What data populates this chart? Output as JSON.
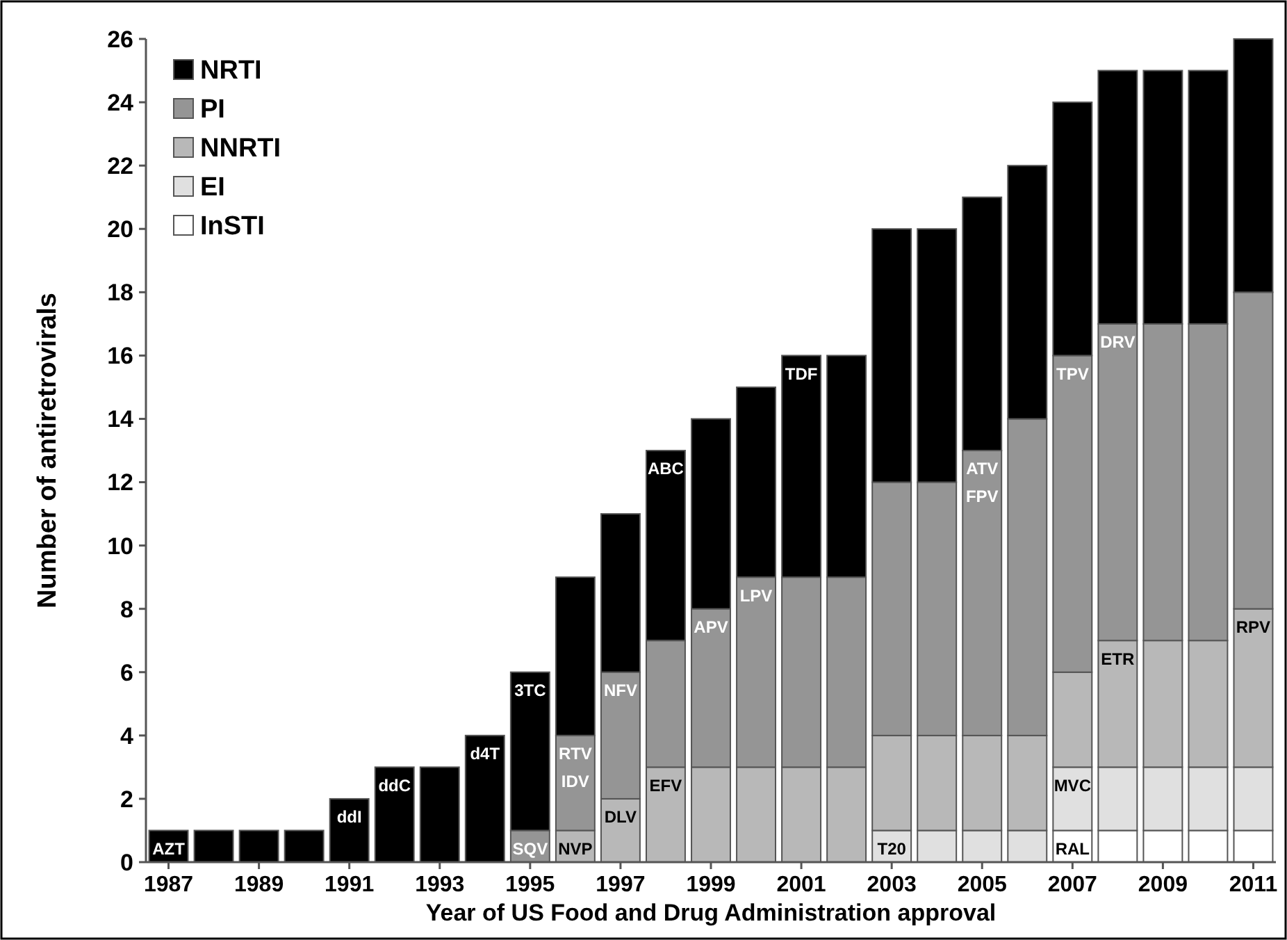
{
  "chart_data": {
    "type": "bar",
    "stacked": true,
    "xlabel": "Year of US Food and Drug Administration approval",
    "ylabel": "Number of antiretrovirals",
    "x": [
      1987,
      1988,
      1989,
      1990,
      1991,
      1992,
      1993,
      1994,
      1995,
      1996,
      1997,
      1998,
      1999,
      2000,
      2001,
      2002,
      2003,
      2004,
      2005,
      2006,
      2007,
      2008,
      2009,
      2010,
      2011
    ],
    "xlim": [
      1986.5,
      2011.5
    ],
    "xticks": [
      1987,
      1989,
      1991,
      1993,
      1995,
      1997,
      1999,
      2001,
      2003,
      2005,
      2007,
      2009,
      2011
    ],
    "ylim": [
      0,
      26
    ],
    "yticks": [
      0,
      2,
      4,
      6,
      8,
      10,
      12,
      14,
      16,
      18,
      20,
      22,
      24,
      26
    ],
    "grid": false,
    "legend": "top left",
    "series": [
      {
        "name": "InSTI",
        "color": "#ffffff",
        "values": [
          0,
          0,
          0,
          0,
          0,
          0,
          0,
          0,
          0,
          0,
          0,
          0,
          0,
          0,
          0,
          0,
          0,
          0,
          0,
          0,
          1,
          1,
          1,
          1,
          1
        ]
      },
      {
        "name": "EI",
        "color": "#e0e0e0",
        "values": [
          0,
          0,
          0,
          0,
          0,
          0,
          0,
          0,
          0,
          0,
          0,
          0,
          0,
          0,
          0,
          0,
          1,
          1,
          1,
          1,
          2,
          2,
          2,
          2,
          2
        ]
      },
      {
        "name": "NNRTI",
        "color": "#b8b8b8",
        "values": [
          0,
          0,
          0,
          0,
          0,
          0,
          0,
          0,
          0,
          1,
          2,
          3,
          3,
          3,
          3,
          3,
          3,
          3,
          3,
          3,
          3,
          4,
          4,
          4,
          5
        ]
      },
      {
        "name": "PI",
        "color": "#959595",
        "values": [
          0,
          0,
          0,
          0,
          0,
          0,
          0,
          0,
          1,
          3,
          4,
          4,
          5,
          6,
          6,
          6,
          8,
          8,
          9,
          10,
          10,
          10,
          10,
          10,
          10
        ]
      },
      {
        "name": "NRTI",
        "color": "#000000",
        "values": [
          1,
          1,
          1,
          1,
          2,
          3,
          3,
          4,
          5,
          5,
          5,
          6,
          6,
          6,
          7,
          7,
          8,
          8,
          8,
          8,
          8,
          8,
          8,
          8,
          8
        ]
      }
    ],
    "annotations": [
      {
        "text": "AZT",
        "x": 1987,
        "y": 1
      },
      {
        "text": "ddI",
        "x": 1991,
        "y": 2
      },
      {
        "text": "ddC",
        "x": 1992,
        "y": 3
      },
      {
        "text": "d4T",
        "x": 1994,
        "y": 4
      },
      {
        "text": "3TC",
        "x": 1995,
        "y": 6
      },
      {
        "text": "SQV",
        "x": 1995,
        "y": 1
      },
      {
        "text": "NVP",
        "x": 1996,
        "y": 1
      },
      {
        "text": "RTV",
        "x": 1996,
        "y": 4
      },
      {
        "text": "IDV",
        "x": 1996,
        "y": 4
      },
      {
        "text": "DLV",
        "x": 1997,
        "y": 2
      },
      {
        "text": "NFV",
        "x": 1997,
        "y": 6
      },
      {
        "text": "EFV",
        "x": 1998,
        "y": 3
      },
      {
        "text": "ABC",
        "x": 1998,
        "y": 13
      },
      {
        "text": "APV",
        "x": 1999,
        "y": 8
      },
      {
        "text": "LPV",
        "x": 2000,
        "y": 9
      },
      {
        "text": "TDF",
        "x": 2001,
        "y": 16
      },
      {
        "text": "T20",
        "x": 2003,
        "y": 1
      },
      {
        "text": "ATV",
        "x": 2005,
        "y": 13
      },
      {
        "text": "FPV",
        "x": 2005,
        "y": 13
      },
      {
        "text": "RAL",
        "x": 2007,
        "y": 1
      },
      {
        "text": "MVC",
        "x": 2007,
        "y": 3
      },
      {
        "text": "TPV",
        "x": 2007,
        "y": 16
      },
      {
        "text": "ETR",
        "x": 2008,
        "y": 7
      },
      {
        "text": "DRV",
        "x": 2008,
        "y": 17
      },
      {
        "text": "RPV",
        "x": 2011,
        "y": 8
      }
    ]
  }
}
